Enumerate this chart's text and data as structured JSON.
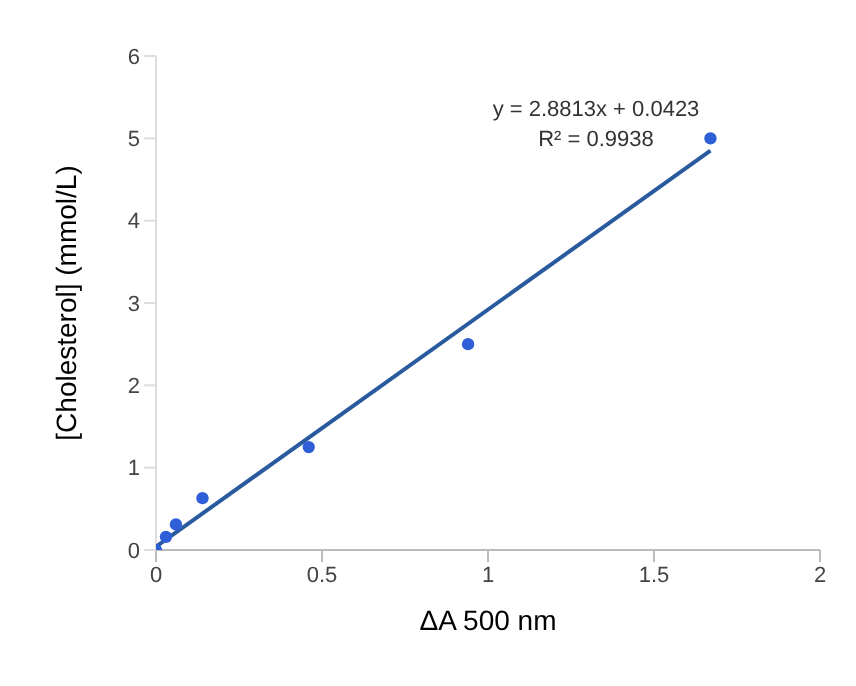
{
  "chart_data": {
    "type": "scatter",
    "xlabel": "ΔA 500 nm",
    "ylabel": "[Cholesterol] (mmol/L)",
    "xlim": [
      0,
      2
    ],
    "ylim": [
      0,
      6
    ],
    "xticks": [
      0,
      0.5,
      1,
      1.5,
      2
    ],
    "yticks": [
      0,
      1,
      2,
      3,
      4,
      5,
      6
    ],
    "grid": false,
    "legend": false,
    "series": [
      {
        "color": "#2e5fd6",
        "marker": "circle",
        "x": [
          0,
          0.03,
          0.06,
          0.14,
          0.46,
          0.94,
          1.67
        ],
        "values": [
          0,
          0.16,
          0.31,
          0.63,
          1.25,
          2.5,
          5.0
        ]
      },
      {
        "type": "line",
        "color": "#2a5a9e",
        "line_style": "solid",
        "x": [
          0,
          1.67
        ],
        "values": [
          0.04,
          4.85
        ]
      }
    ],
    "annotations": [
      "y = 2.8813x + 0.0423",
      "R² = 0.9938"
    ]
  }
}
